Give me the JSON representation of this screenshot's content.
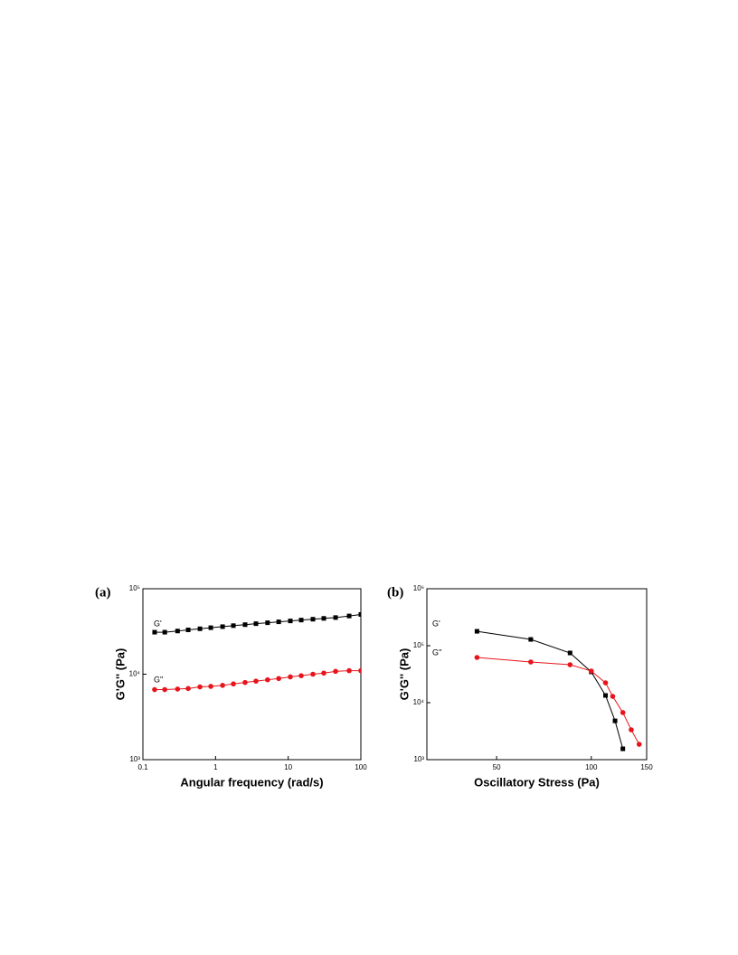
{
  "chart_data": [
    {
      "type": "line",
      "panel_label": "(a)",
      "xlabel": "Angular frequency (rad/s)",
      "ylabel": "G'G'' (Pa)",
      "xscale": "log",
      "yscale": "log",
      "xlim": [
        0.1,
        100
      ],
      "xticks": [
        0.1,
        1,
        10,
        100
      ],
      "ylim": [
        1000,
        100000
      ],
      "yticks": [
        {
          "value": 1000,
          "label": "10³"
        },
        {
          "value": 10000,
          "label": "10⁴"
        },
        {
          "value": 100000,
          "label": "10⁵"
        }
      ],
      "series": [
        {
          "name": "G'",
          "color": "#000000",
          "marker": "square",
          "x": [
            0.145,
            0.2,
            0.3,
            0.42,
            0.61,
            0.86,
            1.25,
            1.76,
            2.55,
            3.6,
            5.2,
            7.4,
            10.7,
            15.1,
            21.9,
            30.9,
            44.9,
            69,
            100
          ],
          "values": [
            31000,
            31000,
            32000,
            33000,
            34000,
            35000,
            36000,
            37000,
            38000,
            39000,
            40000,
            41000,
            42000,
            43000,
            44000,
            45000,
            46000,
            48000,
            50000
          ]
        },
        {
          "name": "G''",
          "color": "#e8141c",
          "marker": "circle",
          "x": [
            0.145,
            0.2,
            0.3,
            0.42,
            0.61,
            0.86,
            1.25,
            1.76,
            2.55,
            3.6,
            5.2,
            7.4,
            10.7,
            15.1,
            21.9,
            30.9,
            44.9,
            69,
            100
          ],
          "values": [
            6600,
            6600,
            6700,
            6800,
            7100,
            7200,
            7400,
            7700,
            8000,
            8300,
            8600,
            8900,
            9300,
            9600,
            10000,
            10300,
            10800,
            11000,
            11000
          ]
        }
      ]
    },
    {
      "type": "line",
      "panel_label": "(b)",
      "xlabel": "Oscillatory Stress (Pa)",
      "ylabel": "G'G'' (Pa)",
      "xscale": "log",
      "yscale": "log",
      "xlim": [
        30,
        150
      ],
      "xticks": [
        50,
        100,
        150
      ],
      "ylim": [
        1000,
        1000000
      ],
      "yticks": [
        {
          "value": 1000,
          "label": "10³"
        },
        {
          "value": 10000,
          "label": "10⁴"
        },
        {
          "value": 100000,
          "label": "10⁵"
        },
        {
          "value": 1000000,
          "label": "10⁶"
        }
      ],
      "series": [
        {
          "name": "G'",
          "color": "#000000",
          "marker": "square",
          "x": [
            43.3,
            64.2,
            85.6,
            100,
            111,
            119,
            126
          ],
          "values": [
            179000,
            129000,
            74600,
            34700,
            13400,
            4800,
            1550
          ]
        },
        {
          "name": "G''",
          "color": "#e8141c",
          "marker": "circle",
          "x": [
            43.3,
            64.2,
            85.6,
            100,
            111,
            117,
            126,
            134,
            142
          ],
          "values": [
            62200,
            51800,
            46400,
            35900,
            22300,
            12900,
            6700,
            3340,
            1860
          ]
        }
      ]
    }
  ]
}
